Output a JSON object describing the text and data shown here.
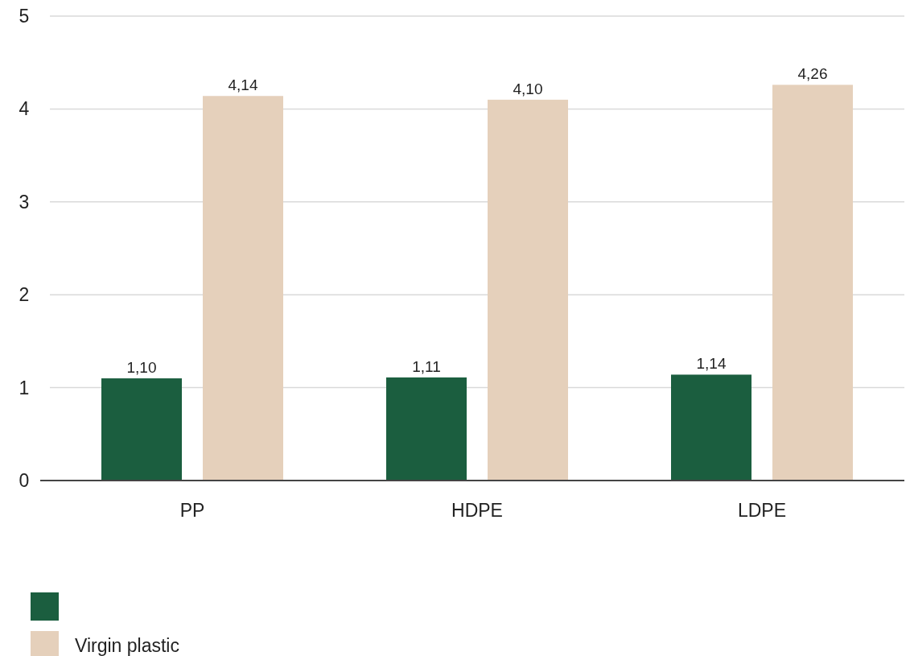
{
  "chart_data": {
    "type": "bar",
    "categories": [
      "PP",
      "HDPE",
      "LDPE"
    ],
    "series": [
      {
        "color": "#1b5e3f",
        "values": [
          1.1,
          1.11,
          1.14
        ],
        "value_labels": [
          "1,10",
          "1,11",
          "1,14"
        ]
      },
      {
        "name": "Virgin plastic",
        "color": "#e5d0bb",
        "values": [
          4.14,
          4.1,
          4.26
        ],
        "value_labels": [
          "4,14",
          "4,10",
          "4,26"
        ]
      }
    ],
    "ylim": [
      0,
      5
    ],
    "yticks": [
      0,
      1,
      2,
      3,
      4,
      5
    ],
    "grid": "y",
    "legend": "bottom left"
  }
}
